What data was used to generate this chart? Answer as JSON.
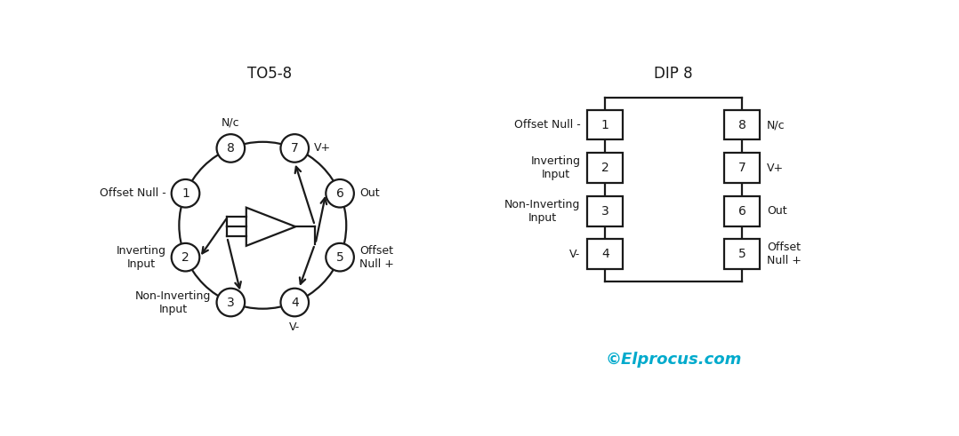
{
  "title_left": "TO5-8",
  "title_right": "DIP 8",
  "watermark": "©Elprocus.com",
  "watermark_color": "#00AACC",
  "bg_color": "#ffffff",
  "pin_angles": {
    "1": 157.5,
    "2": 202.5,
    "3": 247.5,
    "4": 292.5,
    "5": 337.5,
    "6": 22.5,
    "7": 67.5,
    "8": 112.5
  },
  "pin_labels_left": {
    "1": "Offset Null -",
    "2": "Inverting\nInput",
    "3": "Non-Inverting\nInput"
  },
  "pin_labels_right": {
    "5": "Offset\nNull +",
    "6": "Out",
    "7": "V+"
  },
  "pin_labels_top": {
    "8": "N/c"
  },
  "pin_labels_bottom": {
    "4": "V-"
  },
  "dip_left_pins": [
    "1",
    "2",
    "3",
    "4"
  ],
  "dip_right_pins": [
    "8",
    "7",
    "6",
    "5"
  ],
  "dip_left_labels": [
    "Offset Null -",
    "Inverting\nInput",
    "Non-Inverting\nInput",
    "V-"
  ],
  "dip_right_labels": [
    "N/c",
    "V+",
    "Out",
    "Offset\nNull +"
  ],
  "line_color": "#1a1a1a",
  "text_color": "#1a1a1a"
}
